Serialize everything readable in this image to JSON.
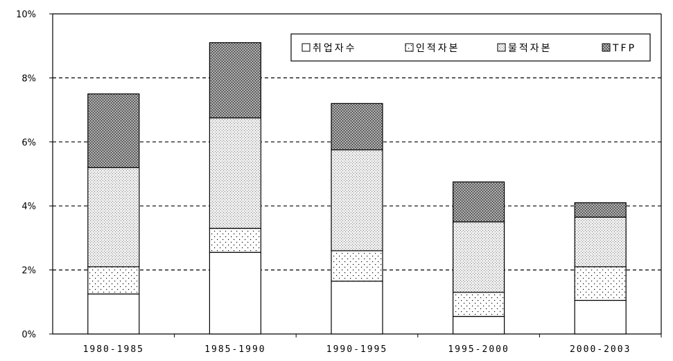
{
  "chart_data": {
    "type": "bar",
    "stacked": true,
    "categories": [
      "1980-1985",
      "1985-1990",
      "1990-1995",
      "1995-2000",
      "2000-2003"
    ],
    "series": [
      {
        "name": "취업자수",
        "values": [
          1.25,
          2.55,
          1.65,
          0.55,
          1.05
        ],
        "pattern": "blank"
      },
      {
        "name": "인적자본",
        "values": [
          0.85,
          0.75,
          0.95,
          0.75,
          1.05
        ],
        "pattern": "sparse-dots"
      },
      {
        "name": "물적자본",
        "values": [
          3.1,
          3.45,
          3.15,
          2.2,
          1.55
        ],
        "pattern": "dense-dots"
      },
      {
        "name": "TFP",
        "values": [
          2.3,
          2.35,
          1.45,
          1.25,
          0.45
        ],
        "pattern": "crosshatch"
      }
    ],
    "yticks": [
      "0%",
      "2%",
      "4%",
      "6%",
      "8%",
      "10%"
    ],
    "ylim": [
      0,
      10
    ],
    "grid": "dashed-horizontal",
    "legend": "top-right",
    "xlabel": "",
    "ylabel": "",
    "title": ""
  }
}
